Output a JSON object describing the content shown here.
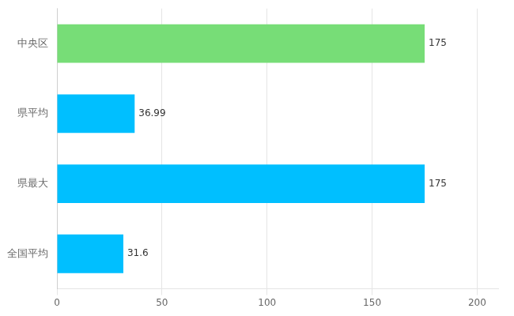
{
  "chart_data": {
    "type": "bar",
    "orientation": "horizontal",
    "categories": [
      "全国平均",
      "県最大",
      "県平均",
      "中央区"
    ],
    "values": [
      31.6,
      175,
      36.99,
      175
    ],
    "colors": [
      "#00bfff",
      "#00bfff",
      "#00bfff",
      "#77dd77"
    ],
    "xlim": [
      0,
      210
    ],
    "xticks": [
      0,
      50,
      100,
      150,
      200
    ],
    "grid": true,
    "data_labels": true
  }
}
